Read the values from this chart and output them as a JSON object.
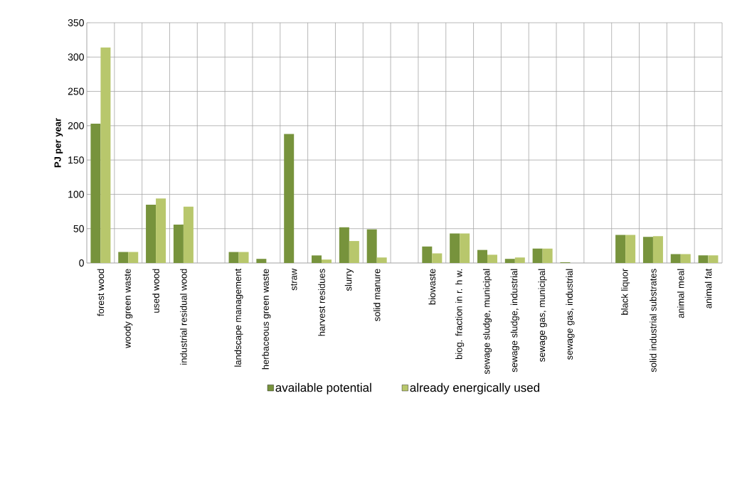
{
  "chart_data": {
    "type": "bar",
    "ylabel": "PJ per year",
    "categories": [
      "forest wood",
      "woody green waste",
      "used wood",
      "industrial residual wood",
      null,
      "landscape management",
      "herbaceous green waste",
      "straw",
      "harvest residues",
      "slurry",
      "solid manure",
      null,
      "biowaste",
      "biog. fraction in r. h w.",
      "sewage sludge, municipal",
      "sewage sludge, industrial",
      "sewage gas, municipal",
      "sewage gas, industrial",
      null,
      "black liquor",
      "solid industrial substrates",
      "animal meal",
      "animal fat"
    ],
    "series": [
      {
        "name": "available potential",
        "color": "#77933c",
        "values": [
          203,
          16,
          85,
          56,
          null,
          16,
          6,
          188,
          11,
          52,
          49,
          null,
          24,
          43,
          19,
          6,
          21,
          1,
          null,
          41,
          38,
          13,
          11
        ]
      },
      {
        "name": "already energically used",
        "color": "#b8c76c",
        "values": [
          314,
          16,
          94,
          82,
          null,
          16,
          null,
          null,
          5,
          32,
          8,
          null,
          14,
          43,
          12,
          8,
          21,
          null,
          null,
          41,
          39,
          13,
          11
        ]
      }
    ],
    "ylim": [
      0,
      350
    ],
    "yticks": [
      0,
      50,
      100,
      150,
      200,
      250,
      300,
      350
    ],
    "grid": true,
    "legend": "bottom"
  }
}
